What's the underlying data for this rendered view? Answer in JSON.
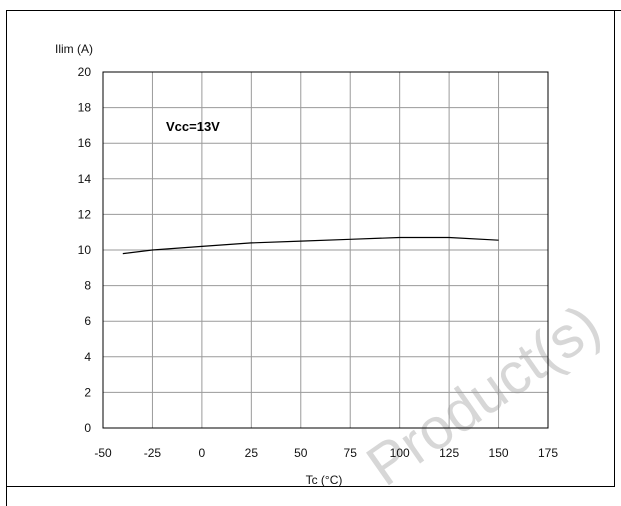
{
  "chart_data": {
    "type": "line",
    "ylabel": "Ilim (A)",
    "xlabel": "Tc (°C)",
    "annotation": "Vcc=13V",
    "watermark": "Product(s)",
    "xlim": [
      -50,
      175
    ],
    "ylim": [
      0,
      20
    ],
    "xticks": [
      -50,
      -25,
      0,
      25,
      50,
      75,
      100,
      125,
      150,
      175
    ],
    "yticks": [
      0,
      2,
      4,
      6,
      8,
      10,
      12,
      14,
      16,
      18,
      20
    ],
    "grid": true,
    "series": [
      {
        "x": [
          -40,
          -25,
          0,
          25,
          50,
          75,
          100,
          125,
          150
        ],
        "values": [
          9.8,
          10.0,
          10.2,
          10.4,
          10.5,
          10.6,
          10.7,
          10.7,
          10.55
        ]
      }
    ]
  }
}
